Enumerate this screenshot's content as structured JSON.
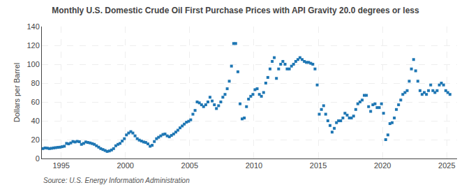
{
  "chart_data": {
    "type": "scatter",
    "title": "Monthly U.S. Domestic Crude Oil First Purchase Prices with API Gravity 20.0 degrees or less",
    "y_label": "Dollars per Barrel",
    "annotations": [
      "Source: U.S. Energy Information Administration"
    ],
    "marker": "square",
    "grid": true,
    "xlim": [
      1993.5,
      2025.8
    ],
    "xticks": [
      1995,
      2000,
      2005,
      2010,
      2015,
      2020,
      2025
    ],
    "ylim": [
      0,
      140
    ],
    "yticks": [
      0,
      20,
      40,
      60,
      80,
      100,
      120,
      140
    ],
    "x": [
      1993.58,
      1993.75,
      1993.92,
      1994.08,
      1994.25,
      1994.42,
      1994.58,
      1994.75,
      1994.92,
      1995.08,
      1995.25,
      1995.42,
      1995.58,
      1995.75,
      1995.92,
      1996.08,
      1996.25,
      1996.42,
      1996.58,
      1996.75,
      1996.92,
      1997.08,
      1997.25,
      1997.42,
      1997.58,
      1997.75,
      1997.92,
      1998.08,
      1998.25,
      1998.42,
      1998.58,
      1998.75,
      1998.92,
      1999.08,
      1999.25,
      1999.42,
      1999.58,
      1999.75,
      1999.92,
      2000.08,
      2000.25,
      2000.42,
      2000.58,
      2000.75,
      2000.92,
      2001.08,
      2001.25,
      2001.42,
      2001.58,
      2001.75,
      2001.92,
      2002.08,
      2002.25,
      2002.42,
      2002.58,
      2002.75,
      2002.92,
      2003.08,
      2003.25,
      2003.42,
      2003.58,
      2003.75,
      2003.92,
      2004.08,
      2004.25,
      2004.42,
      2004.58,
      2004.75,
      2004.92,
      2005.08,
      2005.25,
      2005.42,
      2005.58,
      2005.75,
      2005.92,
      2006.08,
      2006.25,
      2006.42,
      2006.58,
      2006.75,
      2006.92,
      2007.08,
      2007.25,
      2007.42,
      2007.58,
      2007.75,
      2007.92,
      2008.08,
      2008.25,
      2008.42,
      2008.58,
      2008.75,
      2008.92,
      2009.08,
      2009.25,
      2009.42,
      2009.58,
      2009.75,
      2009.92,
      2010.08,
      2010.25,
      2010.42,
      2010.58,
      2010.75,
      2010.92,
      2011.08,
      2011.25,
      2011.42,
      2011.58,
      2011.75,
      2011.92,
      2012.08,
      2012.25,
      2012.42,
      2012.58,
      2012.75,
      2012.92,
      2013.08,
      2013.25,
      2013.42,
      2013.58,
      2013.75,
      2013.92,
      2014.08,
      2014.25,
      2014.42,
      2014.58,
      2014.75,
      2014.92,
      2015.08,
      2015.25,
      2015.42,
      2015.58,
      2015.75,
      2015.92,
      2016.08,
      2016.25,
      2016.42,
      2016.58,
      2016.75,
      2016.92,
      2017.08,
      2017.25,
      2017.42,
      2017.58,
      2017.75,
      2017.92,
      2018.08,
      2018.25,
      2018.42,
      2018.58,
      2018.75,
      2018.92,
      2019.08,
      2019.25,
      2019.42,
      2019.58,
      2019.75,
      2019.92,
      2020.08,
      2020.25,
      2020.42,
      2020.58,
      2020.75,
      2020.92,
      2021.08,
      2021.25,
      2021.42,
      2021.58,
      2021.75,
      2021.92,
      2022.08,
      2022.25,
      2022.42,
      2022.58,
      2022.75,
      2022.92,
      2023.08,
      2023.25,
      2023.42,
      2023.58,
      2023.75,
      2023.92,
      2024.08,
      2024.25,
      2024.42,
      2024.58,
      2024.75,
      2024.92,
      2025.08,
      2025.25
    ],
    "values": [
      10.5,
      11.2,
      11.0,
      10.5,
      10.8,
      11.2,
      11.5,
      11.8,
      12.0,
      12.5,
      13.0,
      16.0,
      15.5,
      16.5,
      18.0,
      17.5,
      18.2,
      17.8,
      15.0,
      16.0,
      17.5,
      17.0,
      16.5,
      15.8,
      15.0,
      13.5,
      12.0,
      10.5,
      9.5,
      8.5,
      7.5,
      8.0,
      9.0,
      10.5,
      13.5,
      15.0,
      16.0,
      18.5,
      21.0,
      25.0,
      27.0,
      28.5,
      27.0,
      24.0,
      21.0,
      19.5,
      18.5,
      17.5,
      17.0,
      15.5,
      13.0,
      14.0,
      18.0,
      21.0,
      22.5,
      24.0,
      25.5,
      26.0,
      24.0,
      23.0,
      24.5,
      26.0,
      28.0,
      30.0,
      32.5,
      34.5,
      36.5,
      38.5,
      39.5,
      41.0,
      47.0,
      51.0,
      60.0,
      59.0,
      57.0,
      55.0,
      57.0,
      60.0,
      65.0,
      61.0,
      57.0,
      53.0,
      56.0,
      60.0,
      65.0,
      68.0,
      74.0,
      82.0,
      98.0,
      122.0,
      122.0,
      92.0,
      58.0,
      42.0,
      43.0,
      55.0,
      63.0,
      66.0,
      68.0,
      73.0,
      74.0,
      68.0,
      66.0,
      70.0,
      80.0,
      86.0,
      95.0,
      103.0,
      107.0,
      85.0,
      95.0,
      100.0,
      103.0,
      100.0,
      95.0,
      95.0,
      98.0,
      100.0,
      103.0,
      105.0,
      107.0,
      105.0,
      103.0,
      102.0,
      102.0,
      101.0,
      100.0,
      95.0,
      78.0,
      47.0,
      52.0,
      56.0,
      47.0,
      40.0,
      35.0,
      28.0,
      32.0,
      38.0,
      40.0,
      40.0,
      43.0,
      48.0,
      46.0,
      43.0,
      43.0,
      45.0,
      52.0,
      58.0,
      60.0,
      62.0,
      67.0,
      67.0,
      55.0,
      50.0,
      57.0,
      58.0,
      54.0,
      54.0,
      58.0,
      48.0,
      20.0,
      25.0,
      37.0,
      38.0,
      43.0,
      52.0,
      57.0,
      62.0,
      68.0,
      70.0,
      72.0,
      82.0,
      95.0,
      105.0,
      93.0,
      82.0,
      72.0,
      68.0,
      70.0,
      68.0,
      72.0,
      78.0,
      72.0,
      70.0,
      72.0,
      78.0,
      80.0,
      78.0,
      72.0,
      70.0,
      68.0
    ]
  }
}
